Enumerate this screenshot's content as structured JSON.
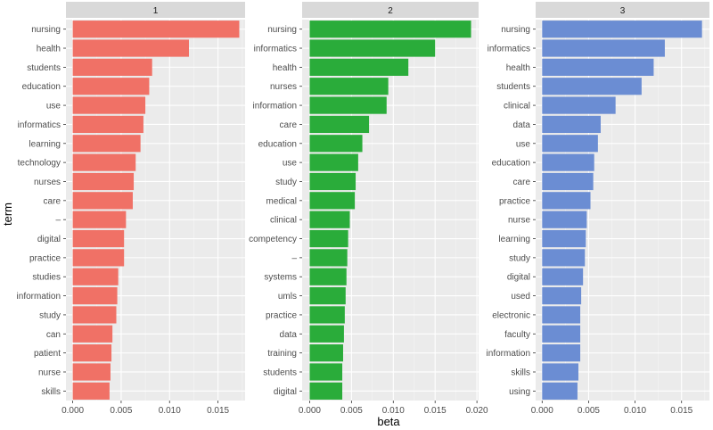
{
  "chart_data": {
    "type": "bar",
    "orientation": "horizontal",
    "xlabel": "beta",
    "ylabel": "term",
    "grid": true,
    "panels": [
      {
        "label": "1",
        "color": "#f07166",
        "xlim": [
          -0.0007,
          0.0178
        ],
        "xticks": [
          0,
          0.005,
          0.01,
          0.015
        ],
        "xtick_labels": [
          "0.000",
          "0.005",
          "0.010",
          "0.015"
        ],
        "categories": [
          "nursing",
          "health",
          "students",
          "education",
          "use",
          "informatics",
          "learning",
          "technology",
          "nurses",
          "care",
          "–",
          "digital",
          "practice",
          "studies",
          "information",
          "study",
          "can",
          "patient",
          "nurse",
          "skills"
        ],
        "values": [
          0.0172,
          0.012,
          0.0082,
          0.0079,
          0.0075,
          0.0073,
          0.007,
          0.0065,
          0.0063,
          0.0062,
          0.0055,
          0.0053,
          0.0053,
          0.0047,
          0.0046,
          0.0045,
          0.0041,
          0.004,
          0.0039,
          0.0038
        ]
      },
      {
        "label": "2",
        "color": "#2aac3a",
        "xlim": [
          -0.0009,
          0.0202
        ],
        "xticks": [
          0,
          0.005,
          0.01,
          0.015,
          0.02
        ],
        "xtick_labels": [
          "0.000",
          "0.005",
          "0.010",
          "0.015",
          "0.020"
        ],
        "categories": [
          "nursing",
          "informatics",
          "health",
          "nurses",
          "information",
          "care",
          "education",
          "use",
          "study",
          "medical",
          "clinical",
          "competency",
          "–",
          "systems",
          "umls",
          "practice",
          "data",
          "training",
          "students",
          "digital"
        ],
        "values": [
          0.0193,
          0.015,
          0.0118,
          0.0094,
          0.0092,
          0.0071,
          0.0063,
          0.0058,
          0.0055,
          0.0054,
          0.0048,
          0.0046,
          0.0045,
          0.0044,
          0.0043,
          0.0042,
          0.0041,
          0.004,
          0.0039,
          0.0039
        ]
      },
      {
        "label": "3",
        "color": "#6b8dd3",
        "xlim": [
          -0.0007,
          0.018
        ],
        "xticks": [
          0,
          0.005,
          0.01,
          0.015
        ],
        "xtick_labels": [
          "0.000",
          "0.005",
          "0.010",
          "0.015"
        ],
        "categories": [
          "nursing",
          "informatics",
          "health",
          "students",
          "clinical",
          "data",
          "use",
          "education",
          "care",
          "practice",
          "nurse",
          "learning",
          "study",
          "digital",
          "used",
          "electronic",
          "faculty",
          "information",
          "skills",
          "using"
        ],
        "values": [
          0.0172,
          0.0132,
          0.012,
          0.0107,
          0.0079,
          0.0063,
          0.006,
          0.0056,
          0.0055,
          0.0052,
          0.0048,
          0.0047,
          0.0046,
          0.0044,
          0.0042,
          0.0041,
          0.0041,
          0.0041,
          0.0039,
          0.0038
        ]
      }
    ]
  }
}
